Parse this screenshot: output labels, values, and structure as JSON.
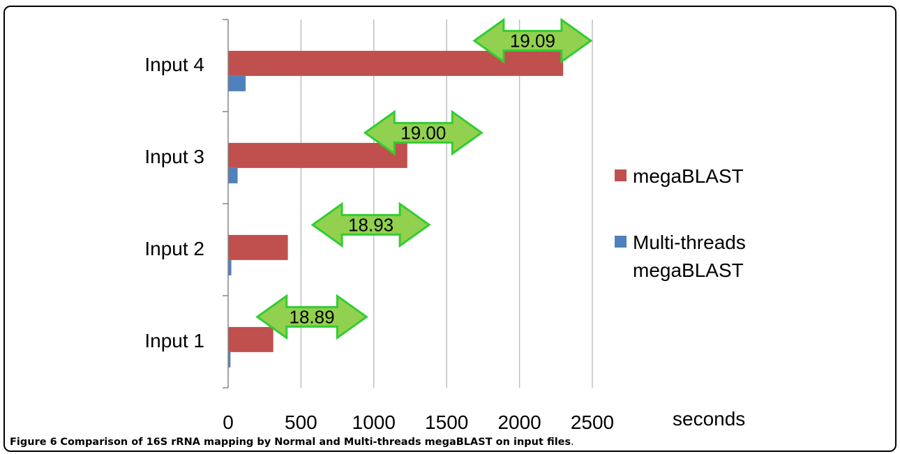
{
  "figure": {
    "caption_label": "Figure 6",
    "caption_text": "Comparison of 16S rRNA mapping by Normal and Multi-threads megaBLAST on input files",
    "caption_end": "."
  },
  "chart_data": {
    "type": "bar",
    "orientation": "horizontal",
    "categories": [
      "Input 1",
      "Input 2",
      "Input 3",
      "Input 4"
    ],
    "series": [
      {
        "name": "megaBLAST",
        "color": "#c0504d",
        "values": [
          310,
          410,
          1230,
          2300
        ]
      },
      {
        "name": "Multi-threads megaBLAST",
        "color": "#4f81bd",
        "values": [
          16,
          22,
          65,
          120
        ]
      }
    ],
    "xlabel": "seconds",
    "ylabel": "",
    "xlim": [
      0,
      2500
    ],
    "xticks": [
      0,
      500,
      1000,
      1500,
      2000,
      2500
    ],
    "grid": "vertical",
    "legend_position": "right",
    "annotations": [
      {
        "category": "Input 1",
        "label": "18.89",
        "from": 200,
        "to": 950
      },
      {
        "category": "Input 2",
        "label": "18.93",
        "from": 580,
        "to": 1380
      },
      {
        "category": "Input 3",
        "label": "19.00",
        "from": 940,
        "to": 1740
      },
      {
        "category": "Input 4",
        "label": "19.09",
        "from": 1690,
        "to": 2490
      }
    ],
    "annotation_fill": "#92d050",
    "annotation_stroke": "#33cc33"
  }
}
